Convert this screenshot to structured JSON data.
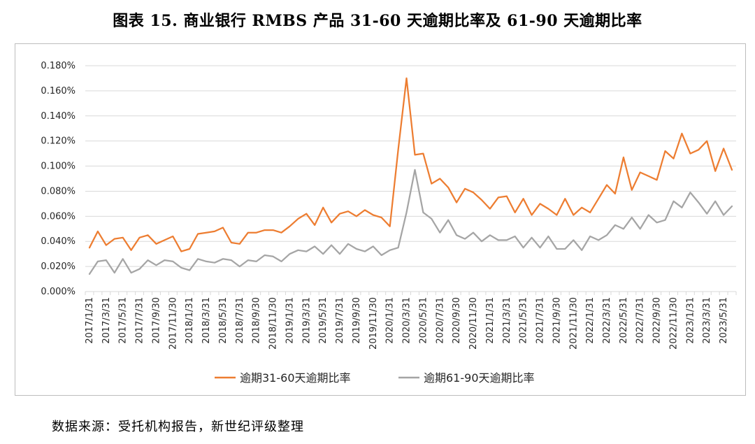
{
  "figure": {
    "title": "图表 15.   商业银行 RMBS 产品 31-60 天逾期比率及 61-90 天逾期比率",
    "source": "数据来源：受托机构报告，新世纪评级整理"
  },
  "chart_data": {
    "type": "line",
    "title": "",
    "xlabel": "",
    "ylabel": "",
    "ylim": [
      0,
      0.18
    ],
    "y_ticks": [
      "0.000%",
      "0.020%",
      "0.040%",
      "0.060%",
      "0.080%",
      "0.100%",
      "0.120%",
      "0.140%",
      "0.160%",
      "0.180%"
    ],
    "grid": true,
    "legend_position": "bottom",
    "x": [
      "2017/1/31",
      "2017/2/28",
      "2017/3/31",
      "2017/4/30",
      "2017/5/31",
      "2017/6/30",
      "2017/7/31",
      "2017/8/31",
      "2017/9/30",
      "2017/10/31",
      "2017/11/30",
      "2017/12/31",
      "2018/1/31",
      "2018/2/28",
      "2018/3/31",
      "2018/4/30",
      "2018/5/31",
      "2018/6/30",
      "2018/7/31",
      "2018/8/31",
      "2018/9/30",
      "2018/10/31",
      "2018/11/30",
      "2018/12/31",
      "2019/1/31",
      "2019/2/28",
      "2019/3/31",
      "2019/4/30",
      "2019/5/31",
      "2019/6/30",
      "2019/7/31",
      "2019/8/31",
      "2019/9/30",
      "2019/10/31",
      "2019/11/30",
      "2019/12/31",
      "2020/1/31",
      "2020/2/29",
      "2020/3/31",
      "2020/4/30",
      "2020/5/31",
      "2020/6/30",
      "2020/7/31",
      "2020/8/31",
      "2020/9/30",
      "2020/10/31",
      "2020/11/30",
      "2020/12/31",
      "2021/1/31",
      "2021/2/28",
      "2021/3/31",
      "2021/4/30",
      "2021/5/31",
      "2021/6/30",
      "2021/7/31",
      "2021/8/31",
      "2021/9/30",
      "2021/10/31",
      "2021/11/30",
      "2021/12/31",
      "2022/1/31",
      "2022/2/28",
      "2022/3/31",
      "2022/4/30",
      "2022/5/31",
      "2022/6/30",
      "2022/7/31",
      "2022/8/31",
      "2022/9/30",
      "2022/10/31",
      "2022/11/30",
      "2022/12/31",
      "2023/1/31",
      "2023/2/28",
      "2023/3/31",
      "2023/4/30",
      "2023/5/31",
      "2023/6/30"
    ],
    "x_tick_labels": [
      "2017/1/31",
      "2017/3/31",
      "2017/5/31",
      "2017/7/31",
      "2017/9/30",
      "2017/11/30",
      "2018/1/31",
      "2018/3/31",
      "2018/5/31",
      "2018/7/31",
      "2018/9/30",
      "2018/11/30",
      "2019/1/31",
      "2019/3/31",
      "2019/5/31",
      "2019/7/31",
      "2019/9/30",
      "2019/11/30",
      "2020/1/31",
      "2020/3/31",
      "2020/5/31",
      "2020/7/31",
      "2020/9/30",
      "2020/11/30",
      "2021/1/31",
      "2021/3/31",
      "2021/5/31",
      "2021/7/31",
      "2021/9/30",
      "2021/11/30",
      "2022/1/31",
      "2022/3/31",
      "2022/5/31",
      "2022/7/31",
      "2022/9/30",
      "2022/11/30",
      "2023/1/31",
      "2023/3/31",
      "2023/5/31"
    ],
    "series": [
      {
        "name": "逾期31-60天逾期比率",
        "color": "#ED7D31",
        "values": [
          0.035,
          0.048,
          0.037,
          0.042,
          0.043,
          0.033,
          0.043,
          0.045,
          0.038,
          0.041,
          0.044,
          0.032,
          0.034,
          0.046,
          0.047,
          0.048,
          0.051,
          0.039,
          0.038,
          0.047,
          0.047,
          0.049,
          0.049,
          0.047,
          0.052,
          0.058,
          0.062,
          0.053,
          0.067,
          0.055,
          0.062,
          0.064,
          0.06,
          0.065,
          0.061,
          0.059,
          0.052,
          0.113,
          0.17,
          0.109,
          0.11,
          0.086,
          0.09,
          0.083,
          0.071,
          0.082,
          0.079,
          0.073,
          0.066,
          0.075,
          0.076,
          0.063,
          0.074,
          0.061,
          0.07,
          0.066,
          0.061,
          0.074,
          0.061,
          0.067,
          0.063,
          0.074,
          0.085,
          0.078,
          0.107,
          0.081,
          0.095,
          0.092,
          0.089,
          0.112,
          0.106,
          0.126,
          0.11,
          0.113,
          0.12,
          0.096,
          0.114,
          0.097
        ]
      },
      {
        "name": "逾期61-90天逾期比率",
        "color": "#A5A5A5",
        "values": [
          0.014,
          0.024,
          0.025,
          0.015,
          0.026,
          0.015,
          0.018,
          0.025,
          0.021,
          0.025,
          0.024,
          0.019,
          0.017,
          0.026,
          0.024,
          0.023,
          0.026,
          0.025,
          0.02,
          0.025,
          0.024,
          0.029,
          0.028,
          0.024,
          0.03,
          0.033,
          0.032,
          0.036,
          0.03,
          0.037,
          0.03,
          0.038,
          0.034,
          0.032,
          0.036,
          0.029,
          0.033,
          0.035,
          0.063,
          0.097,
          0.063,
          0.058,
          0.047,
          0.057,
          0.045,
          0.042,
          0.047,
          0.04,
          0.045,
          0.041,
          0.041,
          0.044,
          0.035,
          0.043,
          0.035,
          0.044,
          0.034,
          0.034,
          0.041,
          0.033,
          0.044,
          0.041,
          0.045,
          0.053,
          0.05,
          0.059,
          0.05,
          0.061,
          0.055,
          0.057,
          0.072,
          0.067,
          0.079,
          0.071,
          0.062,
          0.072,
          0.061,
          0.068
        ]
      }
    ]
  }
}
